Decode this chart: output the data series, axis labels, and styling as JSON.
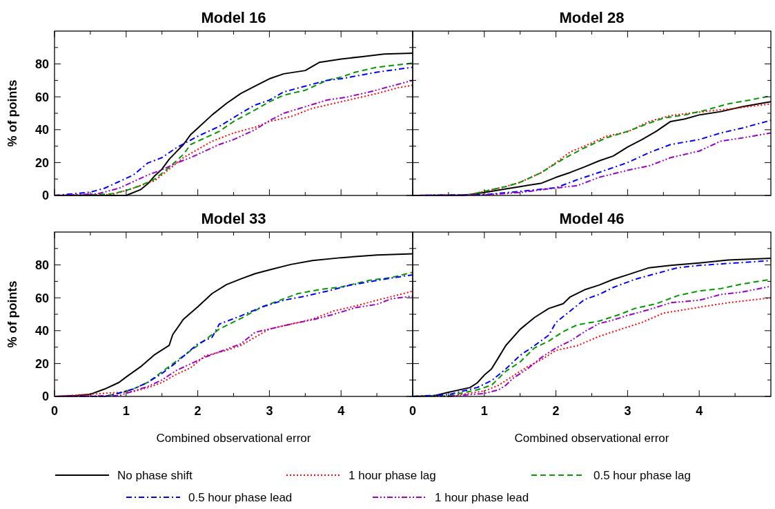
{
  "chart_data": [
    {
      "type": "line",
      "title": "Model 16",
      "ylabel": "% of points",
      "xlim": [
        0,
        5
      ],
      "ylim": [
        0,
        100
      ],
      "xticks": [
        0,
        {
          "value": 0.5,
          "label": null
        },
        1,
        {
          "value": 1.5,
          "label": null
        },
        2,
        {
          "value": 2.5,
          "label": null
        },
        3,
        {
          "value": 3.5,
          "label": null
        },
        4,
        {
          "value": 4.5,
          "label": null
        }
      ],
      "yticks": [
        0,
        {
          "value": 10,
          "label": null
        },
        20,
        {
          "value": 30,
          "label": null
        },
        40,
        {
          "value": 50,
          "label": null
        },
        60,
        {
          "value": 70,
          "label": null
        },
        80,
        {
          "value": 90,
          "label": null
        }
      ],
      "tick_labels": "y",
      "legend": "bottom",
      "series": [
        {
          "name": "No phase shift",
          "color": "#000000",
          "line_style": "solid",
          "x": [
            0,
            1.0,
            1.2,
            1.3,
            1.4,
            1.5,
            1.6,
            1.8,
            1.9,
            2.0,
            2.2,
            2.4,
            2.6,
            2.8,
            3.0,
            3.2,
            3.5,
            3.7,
            4.0,
            4.3,
            4.6,
            5.0
          ],
          "values": [
            0,
            0,
            3.5,
            7,
            12,
            16,
            22,
            31,
            37,
            41,
            49,
            56,
            62,
            66.5,
            71,
            74,
            76,
            81,
            83,
            84.5,
            86,
            86.6
          ]
        },
        {
          "name": "1 hour phase lag",
          "color": "#ff0000",
          "line_style": "dotted",
          "x": [
            0,
            0.8,
            1.0,
            1.2,
            1.4,
            1.6,
            1.8,
            2.0,
            2.2,
            2.5,
            2.8,
            3.0,
            3.3,
            3.6,
            3.9,
            4.2,
            4.5,
            4.8,
            5.0
          ],
          "values": [
            0,
            0.6,
            3,
            6,
            9,
            16,
            23,
            28,
            33,
            38,
            41.5,
            45,
            48,
            53,
            56,
            59,
            62,
            65.6,
            67
          ]
        },
        {
          "name": "0.5 hour phase lag",
          "color": "#009900",
          "line_style": "dashed",
          "x": [
            0,
            0.5,
            0.8,
            1.0,
            1.2,
            1.4,
            1.6,
            1.8,
            1.9,
            2.1,
            2.3,
            2.5,
            2.8,
            3.0,
            3.2,
            3.5,
            3.8,
            4.0,
            4.2,
            4.5,
            5.0
          ],
          "values": [
            0,
            0.3,
            1,
            3,
            6,
            10,
            17,
            25,
            31,
            35,
            39,
            45,
            52,
            57,
            61,
            64,
            70,
            72,
            75,
            78,
            80.5
          ]
        },
        {
          "name": "0.5 hour phase lead",
          "color": "#0000ff",
          "line_style": "dashdot",
          "x": [
            0,
            0.5,
            0.7,
            0.9,
            1.1,
            1.3,
            1.5,
            1.7,
            2.0,
            2.3,
            2.6,
            2.8,
            3.0,
            3.2,
            3.5,
            3.8,
            4.0,
            4.5,
            5.0
          ],
          "values": [
            0,
            2,
            4.4,
            8.4,
            12.4,
            19.7,
            23,
            29,
            36,
            42,
            50,
            55,
            58,
            63,
            66.5,
            70,
            71,
            75,
            78
          ]
        },
        {
          "name": "1 hour phase lead",
          "color": "#9900cc",
          "line_style": "dashdotdot",
          "x": [
            0,
            0.6,
            0.9,
            1.1,
            1.3,
            1.5,
            1.7,
            1.9,
            2.1,
            2.3,
            2.5,
            2.8,
            3.0,
            3.2,
            3.5,
            3.8,
            4.1,
            4.4,
            4.7,
            5.0
          ],
          "values": [
            0,
            1,
            4.4,
            8.4,
            12.4,
            15.6,
            19.7,
            23,
            27,
            31,
            34,
            40,
            45.5,
            50,
            54,
            58,
            60,
            63,
            66.5,
            70
          ]
        }
      ]
    },
    {
      "type": "line",
      "title": "Model 28",
      "xlim": [
        0,
        5
      ],
      "ylim": [
        0,
        100
      ],
      "xticks": [
        0,
        {
          "value": 0.5,
          "label": null
        },
        1,
        {
          "value": 1.5,
          "label": null
        },
        2,
        {
          "value": 2.5,
          "label": null
        },
        3,
        {
          "value": 3.5,
          "label": null
        },
        4,
        {
          "value": 4.5,
          "label": null
        }
      ],
      "yticks": [
        0,
        {
          "value": 10,
          "label": null
        },
        20,
        {
          "value": 30,
          "label": null
        },
        40,
        {
          "value": 50,
          "label": null
        },
        60,
        {
          "value": 70,
          "label": null
        },
        80,
        {
          "value": 90,
          "label": null
        }
      ],
      "tick_labels": false,
      "series": [
        {
          "color": "#000000",
          "line_style": "solid",
          "x": [
            0,
            0.7,
            1.0,
            1.3,
            1.5,
            1.8,
            2.0,
            2.2,
            2.4,
            2.6,
            2.8,
            3.0,
            3.2,
            3.4,
            3.6,
            3.8,
            4.0,
            4.3,
            4.6,
            5.0
          ],
          "values": [
            0,
            0,
            1.8,
            4,
            5.4,
            7.5,
            11,
            14,
            17.4,
            21,
            24,
            29.5,
            34,
            39,
            45,
            46.5,
            49,
            51,
            54,
            57
          ]
        },
        {
          "color": "#ff0000",
          "line_style": "dotted",
          "x": [
            0,
            0.8,
            1.0,
            1.3,
            1.5,
            1.8,
            2.0,
            2.2,
            2.4,
            2.7,
            3.0,
            3.3,
            3.6,
            4.0,
            4.5,
            5.0
          ],
          "values": [
            0,
            0.5,
            2.5,
            5.4,
            8,
            14,
            20,
            26.5,
            30,
            36,
            38.7,
            45,
            48.6,
            50.7,
            53,
            55.7
          ]
        },
        {
          "color": "#009900",
          "line_style": "dashed",
          "x": [
            0,
            0.8,
            1.0,
            1.3,
            1.5,
            1.8,
            2.0,
            2.2,
            2.4,
            2.7,
            3.0,
            3.3,
            3.5,
            3.8,
            4.1,
            4.4,
            4.7,
            5.0
          ],
          "values": [
            0,
            0.5,
            2.5,
            5.4,
            8,
            14,
            19.5,
            24.5,
            29,
            35,
            39,
            44,
            47,
            49,
            52,
            55.7,
            58,
            60.6
          ]
        },
        {
          "color": "#0000ff",
          "line_style": "dashdot",
          "x": [
            0,
            1.0,
            1.5,
            2.0,
            2.3,
            2.6,
            3.0,
            3.3,
            3.6,
            4.0,
            4.3,
            4.6,
            5.0
          ],
          "values": [
            0,
            0.5,
            2.5,
            4.7,
            9.6,
            14,
            20,
            26,
            31,
            34,
            38,
            41,
            45.7
          ]
        },
        {
          "color": "#9900cc",
          "line_style": "dashdotdot",
          "x": [
            0,
            1.0,
            1.5,
            1.9,
            2.3,
            2.6,
            3.0,
            3.3,
            3.6,
            4.0,
            4.3,
            4.6,
            5.0
          ],
          "values": [
            0,
            0.3,
            1.8,
            4,
            6,
            11,
            15.3,
            18,
            23,
            27,
            33,
            35,
            38
          ]
        }
      ]
    },
    {
      "type": "line",
      "title": "Model 33",
      "xlabel": "Combined observational error",
      "ylabel": "% of points",
      "xlim": [
        0,
        5
      ],
      "ylim": [
        0,
        100
      ],
      "xticks": [
        0,
        {
          "value": 0.5,
          "label": null
        },
        1,
        {
          "value": 1.5,
          "label": null
        },
        2,
        {
          "value": 2.5,
          "label": null
        },
        3,
        {
          "value": 3.5,
          "label": null
        },
        4,
        {
          "value": 4.5,
          "label": null
        }
      ],
      "yticks": [
        0,
        {
          "value": 10,
          "label": null
        },
        20,
        {
          "value": 30,
          "label": null
        },
        40,
        {
          "value": 50,
          "label": null
        },
        60,
        {
          "value": 70,
          "label": null
        },
        80,
        {
          "value": 90,
          "label": null
        }
      ],
      "series": [
        {
          "color": "#000000",
          "line_style": "solid",
          "x": [
            0,
            0.3,
            0.5,
            0.7,
            0.9,
            1.0,
            1.2,
            1.4,
            1.6,
            1.65,
            1.8,
            2.0,
            2.2,
            2.4,
            2.6,
            2.8,
            3.0,
            3.3,
            3.6,
            4.0,
            4.5,
            5.0
          ],
          "values": [
            0,
            0.5,
            1.3,
            4.5,
            8.5,
            11.8,
            18,
            25.5,
            31,
            37.6,
            47,
            54.5,
            62.6,
            68,
            71.5,
            74.7,
            77,
            80.3,
            82.7,
            84.4,
            86,
            86.8
          ]
        },
        {
          "color": "#ff0000",
          "line_style": "dotted",
          "x": [
            0,
            0.9,
            1.1,
            1.3,
            1.5,
            1.7,
            1.9,
            2.1,
            2.4,
            2.6,
            2.8,
            3.0,
            3.3,
            3.6,
            3.9,
            4.2,
            4.5,
            4.8,
            5.0
          ],
          "values": [
            0,
            null,
            3,
            5.3,
            8.5,
            13.4,
            17.4,
            24.7,
            28,
            31,
            36,
            41,
            44,
            47,
            52,
            55,
            58.5,
            61.8,
            64
          ]
        },
        {
          "color": "#009900",
          "line_style": "dashed",
          "x": [
            0,
            0.7,
            0.9,
            1.1,
            1.3,
            1.5,
            1.8,
            2.0,
            2.3,
            2.6,
            2.9,
            3.2,
            3.4,
            3.7,
            4.0,
            4.4,
            4.7,
            5.0
          ],
          "values": [
            0,
            0,
            2,
            4.5,
            8.5,
            15,
            24.7,
            31,
            41,
            47.4,
            54.5,
            59.4,
            62.6,
            65,
            66.6,
            70.7,
            72.3,
            75.5
          ]
        },
        {
          "color": "#0000ff",
          "line_style": "dashdot",
          "x": [
            0,
            0.7,
            0.9,
            1.1,
            1.3,
            1.5,
            1.7,
            2.0,
            2.2,
            2.3,
            2.6,
            2.9,
            3.2,
            3.5,
            3.8,
            4.1,
            4.4,
            4.7,
            5.0
          ],
          "values": [
            0,
            0,
            2,
            4.5,
            8.5,
            14,
            20.6,
            32,
            36,
            44,
            49,
            54.5,
            58.5,
            61,
            64,
            67.4,
            69.8,
            72,
            74
          ]
        },
        {
          "color": "#9900cc",
          "line_style": "dashdotdot",
          "x": [
            0,
            0.9,
            1.3,
            1.5,
            1.7,
            1.9,
            2.1,
            2.4,
            2.6,
            2.8,
            3.0,
            3.3,
            3.6,
            3.9,
            4.2,
            4.5,
            4.7,
            5.0
          ],
          "values": [
            0,
            0.5,
            6,
            10,
            15.8,
            19.8,
            23.9,
            28.7,
            32,
            39,
            41,
            44,
            46.6,
            50,
            54,
            56,
            59.4,
            61
          ]
        }
      ]
    },
    {
      "type": "line",
      "title": "Model 46",
      "xlabel": "Combined observational error",
      "xlim": [
        0,
        5
      ],
      "ylim": [
        0,
        100
      ],
      "xticks": [
        0,
        {
          "value": 0.5,
          "label": null
        },
        1,
        {
          "value": 1.5,
          "label": null
        },
        2,
        {
          "value": 2.5,
          "label": null
        },
        3,
        {
          "value": 3.5,
          "label": null
        },
        4,
        {
          "value": 4.5,
          "label": null
        }
      ],
      "yticks": [
        0,
        {
          "value": 10,
          "label": null
        },
        20,
        {
          "value": 30,
          "label": null
        },
        40,
        {
          "value": 50,
          "label": null
        },
        60,
        {
          "value": 70,
          "label": null
        },
        80,
        {
          "value": 90,
          "label": null
        }
      ],
      "tick_labels": "x",
      "series": [
        {
          "color": "#000000",
          "line_style": "solid",
          "x": [
            0,
            0.3,
            0.5,
            0.8,
            0.9,
            1.0,
            1.1,
            1.2,
            1.3,
            1.5,
            1.7,
            1.9,
            2.1,
            2.2,
            2.4,
            2.6,
            2.8,
            3.0,
            3.3,
            3.6,
            4.0,
            4.4,
            5.0
          ],
          "values": [
            0,
            0.4,
            2.5,
            5.4,
            8.2,
            13,
            16.7,
            23.8,
            31,
            40.8,
            48,
            53.5,
            56.4,
            60.6,
            64.9,
            67.7,
            71.2,
            74,
            78.3,
            79.7,
            81.2,
            83,
            84
          ]
        },
        {
          "color": "#ff0000",
          "line_style": "dotted",
          "x": [
            0,
            0.5,
            1.0,
            1.2,
            1.4,
            1.6,
            1.8,
            2.0,
            2.3,
            2.6,
            2.9,
            3.2,
            3.5,
            3.8,
            4.1,
            4.4,
            4.7,
            5.0
          ],
          "values": [
            0,
            0,
            3.3,
            6.8,
            12.5,
            18,
            22.4,
            28,
            30.9,
            36.5,
            40.8,
            45,
            50.7,
            52.8,
            55,
            57,
            58.5,
            60
          ]
        },
        {
          "color": "#009900",
          "line_style": "dashed",
          "x": [
            0,
            0.5,
            0.9,
            1.1,
            1.3,
            1.5,
            1.7,
            1.9,
            2.1,
            2.3,
            2.6,
            2.9,
            3.1,
            3.4,
            3.7,
            4.0,
            4.3,
            4.6,
            5.0
          ],
          "values": [
            0,
            0.4,
            4,
            6.8,
            15.3,
            21,
            29.5,
            33.7,
            39.4,
            43.6,
            45.8,
            50,
            53.5,
            56.4,
            61.3,
            64.2,
            65.6,
            68.4,
            71.2
          ]
        },
        {
          "color": "#0000ff",
          "line_style": "dashdot",
          "x": [
            0,
            0.5,
            0.9,
            1.1,
            1.3,
            1.5,
            1.7,
            1.9,
            2.0,
            2.2,
            2.4,
            2.6,
            2.8,
            3.1,
            3.4,
            3.7,
            4.0,
            4.5,
            5.0
          ],
          "values": [
            0,
            1.1,
            5.4,
            9.6,
            16.7,
            25,
            30.9,
            37.3,
            45,
            52,
            59,
            62,
            66.3,
            71.2,
            74.8,
            78.3,
            79.7,
            81.2,
            82.6
          ]
        },
        {
          "color": "#9900cc",
          "line_style": "dashdotdot",
          "x": [
            0.5,
            1.0,
            1.2,
            1.3,
            1.4,
            1.6,
            1.8,
            2.0,
            2.2,
            2.4,
            2.6,
            2.8,
            3.0,
            3.3,
            3.6,
            4.0,
            4.3,
            4.6,
            5.0
          ],
          "values": [
            0,
            1.8,
            4,
            6.8,
            11,
            16.7,
            23.8,
            29.5,
            33.7,
            39.4,
            44.3,
            46.5,
            49.3,
            52.8,
            57,
            58.5,
            62,
            63.5,
            67
          ]
        }
      ]
    }
  ]
}
